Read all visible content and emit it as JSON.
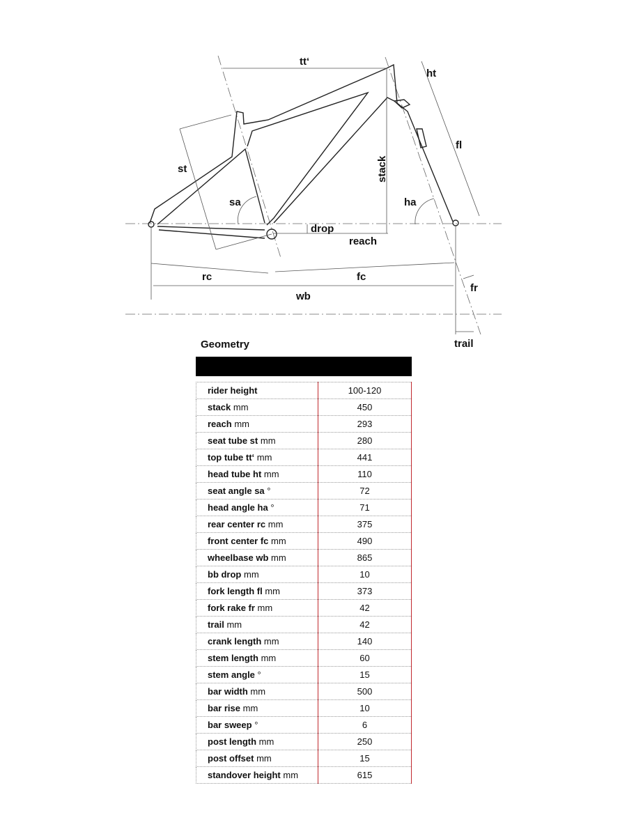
{
  "diagram": {
    "labels": {
      "tt": "tt‘",
      "ht": "ht",
      "fl": "fl",
      "st": "st",
      "sa": "sa",
      "stack": "stack",
      "ha": "ha",
      "drop": "drop",
      "reach": "reach",
      "rc": "rc",
      "fc": "fc",
      "wb": "wb",
      "fr": "fr",
      "trail": "trail"
    }
  },
  "title": "Geometry",
  "accent_color": "#c0282d",
  "rows": [
    {
      "name": "rider height",
      "unit": "",
      "value": "100-120"
    },
    {
      "name": "stack",
      "unit": "mm",
      "value": "450"
    },
    {
      "name": "reach",
      "unit": "mm",
      "value": "293"
    },
    {
      "name": "seat tube st",
      "unit": "mm",
      "value": "280"
    },
    {
      "name": "top tube tt‘",
      "unit": "mm",
      "value": "441"
    },
    {
      "name": "head tube ht",
      "unit": "mm",
      "value": "110"
    },
    {
      "name": "seat angle sa",
      "unit": "°",
      "value": "72"
    },
    {
      "name": "head angle ha",
      "unit": "°",
      "value": "71"
    },
    {
      "name": "rear center rc",
      "unit": "mm",
      "value": "375"
    },
    {
      "name": "front center fc",
      "unit": "mm",
      "value": "490"
    },
    {
      "name": "wheelbase wb",
      "unit": "mm",
      "value": "865"
    },
    {
      "name": "bb drop",
      "unit": "mm",
      "value": "10"
    },
    {
      "name": "fork length fl",
      "unit": "mm",
      "value": "373"
    },
    {
      "name": "fork rake fr",
      "unit": "mm",
      "value": "42"
    },
    {
      "name": "trail",
      "unit": "mm",
      "value": "42"
    },
    {
      "name": "crank length",
      "unit": "mm",
      "value": "140"
    },
    {
      "name": "stem length",
      "unit": "mm",
      "value": "60"
    },
    {
      "name": "stem angle",
      "unit": "°",
      "value": "15"
    },
    {
      "name": "bar width",
      "unit": "mm",
      "value": "500"
    },
    {
      "name": "bar rise",
      "unit": "mm",
      "value": "10"
    },
    {
      "name": "bar sweep",
      "unit": "°",
      "value": "6"
    },
    {
      "name": "post length",
      "unit": "mm",
      "value": "250"
    },
    {
      "name": "post offset",
      "unit": "mm",
      "value": "15"
    },
    {
      "name": "standover height",
      "unit": "mm",
      "value": "615"
    }
  ]
}
